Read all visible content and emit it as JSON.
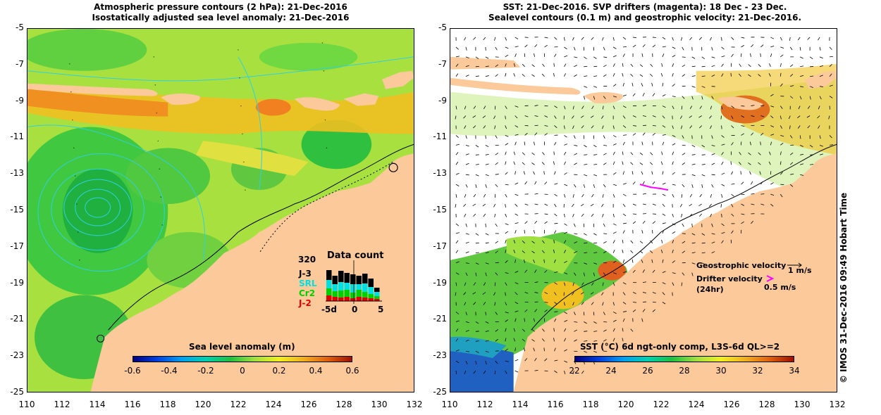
{
  "left_panel": {
    "title_line1": "Atmospheric pressure contours (2 hPa): 21-Dec-2016",
    "title_line2": "Isostatically adjusted sea level anomaly: 21-Dec-2016",
    "colorbar_title": "Sea level anomaly (m)",
    "colorbar_ticks": [
      "-0.6",
      "-0.4",
      "-0.2",
      "0",
      "0.2",
      "0.4",
      "0.6"
    ],
    "data_count": {
      "title": "Data count",
      "max_label": "320",
      "missions": [
        {
          "name": "J-3",
          "color": "#000000"
        },
        {
          "name": "SRL",
          "color": "#00e0e0"
        },
        {
          "name": "Cr2",
          "color": "#00d000"
        },
        {
          "name": "J-2",
          "color": "#e00000"
        }
      ],
      "x_ticks": [
        "-5d",
        "0",
        "5"
      ]
    }
  },
  "right_panel": {
    "title_line1": "SST: 21-Dec-2016. SVP drifters (magenta): 18 Dec - 23 Dec.",
    "title_line2": "Sealevel contours (0.1 m) and geostrophic velocity: 21-Dec-2016.",
    "colorbar_title": "SST (°C) 6d ngt-only comp, L3S-6d QL>=2",
    "colorbar_ticks": [
      "22",
      "24",
      "26",
      "28",
      "30",
      "32",
      "34"
    ],
    "legend": {
      "geo_label": "Geostrophic velocity",
      "geo_scale": "1 m/s",
      "drifter_label": "Drifter velocity",
      "drifter_sub": "(24hr)",
      "drifter_scale": "0.5 m/s"
    }
  },
  "axes": {
    "y_ticks": [
      "-5",
      "-7",
      "-9",
      "-11",
      "-13",
      "-15",
      "-17",
      "-19",
      "-21",
      "-23",
      "-25"
    ],
    "x_ticks": [
      "110",
      "112",
      "114",
      "116",
      "118",
      "120",
      "122",
      "124",
      "126",
      "128",
      "130",
      "132"
    ]
  },
  "credit": "© IMOS 31-Dec-2016 09:49 Hobart Time",
  "colors": {
    "land": "#fbc99a",
    "sla_base": "#a0e040",
    "sst_base": "#ffffff"
  }
}
